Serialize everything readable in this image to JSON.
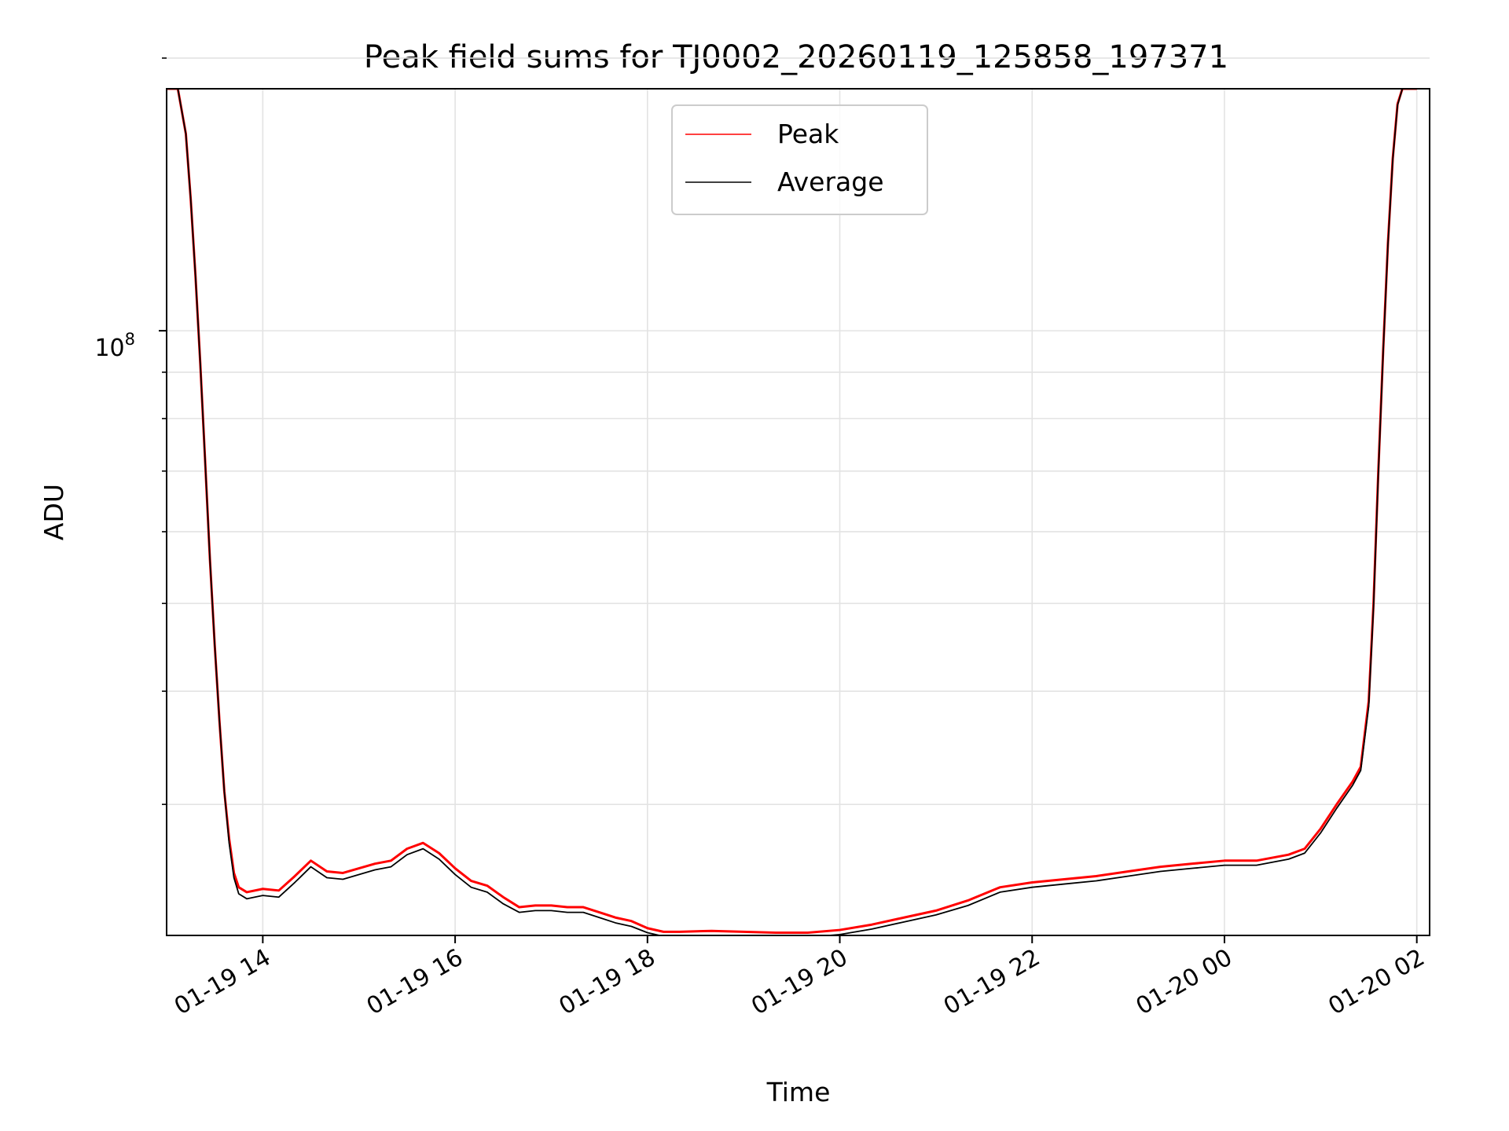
{
  "chart_data": {
    "type": "line",
    "title": "Peak field sums for TJ0002_20260119_125858_197371",
    "xlabel": "Time",
    "ylabel": "ADU",
    "y_scale": "log",
    "ylim": [
      21500000,
      185000000
    ],
    "y_major_tick_label_base": "10",
    "y_major_tick_label_exponent": "8",
    "y_major_tick_value": 100000000,
    "y_minor_tick_values": [
      30000000,
      40000000,
      50000000,
      60000000,
      70000000,
      80000000,
      90000000,
      200000000
    ],
    "xlim": [
      "2026-01-19 13:00",
      "2026-01-20 02:08"
    ],
    "x_ticks": [
      {
        "time": "2026-01-19 14:00",
        "label": "01-19 14"
      },
      {
        "time": "2026-01-19 16:00",
        "label": "01-19 16"
      },
      {
        "time": "2026-01-19 18:00",
        "label": "01-19 18"
      },
      {
        "time": "2026-01-19 20:00",
        "label": "01-19 20"
      },
      {
        "time": "2026-01-19 22:00",
        "label": "01-19 22"
      },
      {
        "time": "2026-01-20 00:00",
        "label": "01-20 00"
      },
      {
        "time": "2026-01-20 02:00",
        "label": "01-20 02"
      }
    ],
    "grid": true,
    "legend_position": "upper-center",
    "series": [
      {
        "name": "Peak",
        "color": "#ff0000",
        "x": [
          "2026-01-19 13:00",
          "2026-01-19 13:07",
          "2026-01-19 13:12",
          "2026-01-19 13:15",
          "2026-01-19 13:18",
          "2026-01-19 13:21",
          "2026-01-19 13:24",
          "2026-01-19 13:27",
          "2026-01-19 13:30",
          "2026-01-19 13:33",
          "2026-01-19 13:36",
          "2026-01-19 13:39",
          "2026-01-19 13:42",
          "2026-01-19 13:45",
          "2026-01-19 13:50",
          "2026-01-19 14:00",
          "2026-01-19 14:10",
          "2026-01-19 14:20",
          "2026-01-19 14:30",
          "2026-01-19 14:40",
          "2026-01-19 14:50",
          "2026-01-19 15:00",
          "2026-01-19 15:10",
          "2026-01-19 15:20",
          "2026-01-19 15:30",
          "2026-01-19 15:40",
          "2026-01-19 15:50",
          "2026-01-19 16:00",
          "2026-01-19 16:10",
          "2026-01-19 16:20",
          "2026-01-19 16:30",
          "2026-01-19 16:40",
          "2026-01-19 16:50",
          "2026-01-19 17:00",
          "2026-01-19 17:10",
          "2026-01-19 17:20",
          "2026-01-19 17:30",
          "2026-01-19 17:40",
          "2026-01-19 17:50",
          "2026-01-19 18:00",
          "2026-01-19 18:10",
          "2026-01-19 18:20",
          "2026-01-19 18:40",
          "2026-01-19 19:00",
          "2026-01-19 19:20",
          "2026-01-19 19:40",
          "2026-01-19 20:00",
          "2026-01-19 20:20",
          "2026-01-19 20:40",
          "2026-01-19 21:00",
          "2026-01-19 21:20",
          "2026-01-19 21:40",
          "2026-01-19 22:00",
          "2026-01-19 22:20",
          "2026-01-19 22:40",
          "2026-01-19 23:00",
          "2026-01-19 23:20",
          "2026-01-19 23:40",
          "2026-01-20 00:00",
          "2026-01-20 00:20",
          "2026-01-20 00:40",
          "2026-01-20 00:50",
          "2026-01-20 01:00",
          "2026-01-20 01:10",
          "2026-01-20 01:20",
          "2026-01-20 01:25",
          "2026-01-20 01:30",
          "2026-01-20 01:33",
          "2026-01-20 01:36",
          "2026-01-20 01:39",
          "2026-01-20 01:42",
          "2026-01-20 01:45",
          "2026-01-20 01:48",
          "2026-01-20 01:51",
          "2026-01-20 01:54",
          "2026-01-20 01:57",
          "2026-01-20 02:00"
        ],
        "values": [
          185000000,
          185000000,
          165000000,
          140000000,
          115000000,
          92000000,
          72000000,
          56000000,
          45000000,
          37000000,
          31000000,
          27500000,
          25200000,
          24300000,
          24000000,
          24200000,
          24100000,
          25000000,
          26000000,
          25300000,
          25200000,
          25500000,
          25800000,
          26000000,
          26800000,
          27200000,
          26500000,
          25500000,
          24700000,
          24400000,
          23700000,
          23100000,
          23200000,
          23200000,
          23100000,
          23100000,
          22800000,
          22500000,
          22300000,
          21900000,
          21700000,
          21700000,
          21750000,
          21700000,
          21650000,
          21650000,
          21800000,
          22100000,
          22500000,
          22900000,
          23500000,
          24300000,
          24600000,
          24800000,
          25000000,
          25300000,
          25600000,
          25800000,
          26000000,
          26000000,
          26400000,
          26800000,
          28200000,
          30000000,
          31800000,
          33000000,
          39000000,
          50000000,
          70000000,
          95000000,
          125000000,
          155000000,
          178000000,
          185000000,
          185000000,
          185000000,
          185000000
        ]
      },
      {
        "name": "Average",
        "color": "#000000",
        "x": [
          "2026-01-19 13:00",
          "2026-01-19 13:07",
          "2026-01-19 13:12",
          "2026-01-19 13:15",
          "2026-01-19 13:18",
          "2026-01-19 13:21",
          "2026-01-19 13:24",
          "2026-01-19 13:27",
          "2026-01-19 13:30",
          "2026-01-19 13:33",
          "2026-01-19 13:36",
          "2026-01-19 13:39",
          "2026-01-19 13:42",
          "2026-01-19 13:45",
          "2026-01-19 13:50",
          "2026-01-19 14:00",
          "2026-01-19 14:10",
          "2026-01-19 14:20",
          "2026-01-19 14:30",
          "2026-01-19 14:40",
          "2026-01-19 14:50",
          "2026-01-19 15:00",
          "2026-01-19 15:10",
          "2026-01-19 15:20",
          "2026-01-19 15:30",
          "2026-01-19 15:40",
          "2026-01-19 15:50",
          "2026-01-19 16:00",
          "2026-01-19 16:10",
          "2026-01-19 16:20",
          "2026-01-19 16:30",
          "2026-01-19 16:40",
          "2026-01-19 16:50",
          "2026-01-19 17:00",
          "2026-01-19 17:10",
          "2026-01-19 17:20",
          "2026-01-19 17:30",
          "2026-01-19 17:40",
          "2026-01-19 17:50",
          "2026-01-19 18:00",
          "2026-01-19 18:10",
          "2026-01-19 18:20",
          "2026-01-19 18:40",
          "2026-01-19 19:00",
          "2026-01-19 19:20",
          "2026-01-19 19:40",
          "2026-01-19 20:00",
          "2026-01-19 20:20",
          "2026-01-19 20:40",
          "2026-01-19 21:00",
          "2026-01-19 21:20",
          "2026-01-19 21:40",
          "2026-01-19 22:00",
          "2026-01-19 22:20",
          "2026-01-19 22:40",
          "2026-01-19 23:00",
          "2026-01-19 23:20",
          "2026-01-19 23:40",
          "2026-01-20 00:00",
          "2026-01-20 00:20",
          "2026-01-20 00:40",
          "2026-01-20 00:50",
          "2026-01-20 01:00",
          "2026-01-20 01:10",
          "2026-01-20 01:20",
          "2026-01-20 01:25",
          "2026-01-20 01:30",
          "2026-01-20 01:33",
          "2026-01-20 01:36",
          "2026-01-20 01:39",
          "2026-01-20 01:42",
          "2026-01-20 01:45",
          "2026-01-20 01:48",
          "2026-01-20 01:51",
          "2026-01-20 01:54",
          "2026-01-20 01:57",
          "2026-01-20 02:00"
        ],
        "values": [
          185000000,
          185000000,
          165000000,
          140000000,
          115000000,
          92000000,
          72000000,
          56000000,
          45000000,
          37000000,
          31000000,
          27200000,
          24900000,
          23900000,
          23600000,
          23800000,
          23700000,
          24600000,
          25600000,
          24900000,
          24800000,
          25100000,
          25400000,
          25600000,
          26400000,
          26800000,
          26100000,
          25100000,
          24300000,
          24000000,
          23300000,
          22800000,
          22900000,
          22900000,
          22800000,
          22800000,
          22500000,
          22200000,
          22000000,
          21650000,
          21450000,
          21450000,
          21500000,
          21450000,
          21400000,
          21400000,
          21550000,
          21850000,
          22250000,
          22650000,
          23200000,
          24000000,
          24300000,
          24500000,
          24700000,
          25000000,
          25300000,
          25500000,
          25700000,
          25700000,
          26100000,
          26500000,
          27900000,
          29700000,
          31500000,
          32700000,
          38500000,
          49500000,
          69500000,
          94500000,
          124500000,
          154500000,
          177500000,
          185000000,
          185000000,
          185000000,
          185000000
        ]
      }
    ]
  }
}
